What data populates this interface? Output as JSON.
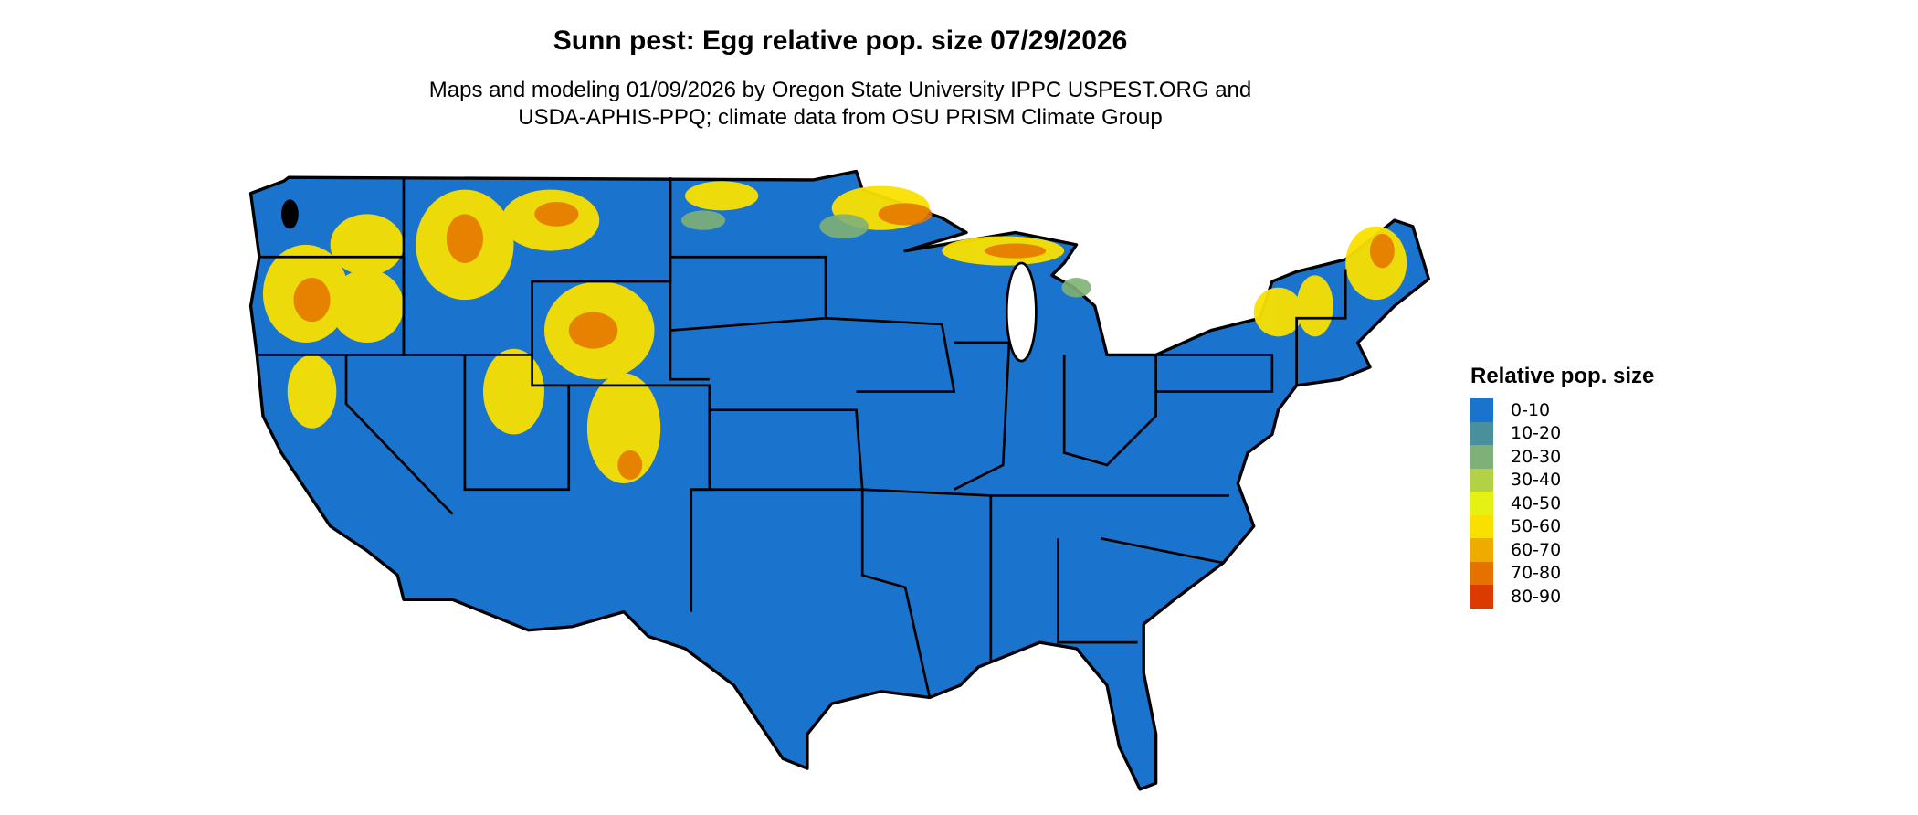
{
  "title": "Sunn pest: Egg relative pop. size 07/29/2026",
  "subtitle_line1": "Maps and modeling 01/09/2026 by Oregon State University IPPC USPEST.ORG and",
  "subtitle_line2": "USDA-APHIS-PPQ; climate data from OSU PRISM Climate Group",
  "map": {
    "region": "Contiguous United States",
    "base_color": "#1a73cc",
    "border_color": "#000000"
  },
  "legend": {
    "title": "Relative pop. size",
    "items": [
      {
        "label": "0-10",
        "color": "#1a73cc"
      },
      {
        "label": "10-20",
        "color": "#4a8f9c"
      },
      {
        "label": "20-30",
        "color": "#7fb077"
      },
      {
        "label": "30-40",
        "color": "#b3d145"
      },
      {
        "label": "40-50",
        "color": "#e5f014"
      },
      {
        "label": "50-60",
        "color": "#f9e000"
      },
      {
        "label": "60-70",
        "color": "#f0ab00"
      },
      {
        "label": "70-80",
        "color": "#e57200"
      },
      {
        "label": "80-90",
        "color": "#db3b00"
      }
    ]
  }
}
